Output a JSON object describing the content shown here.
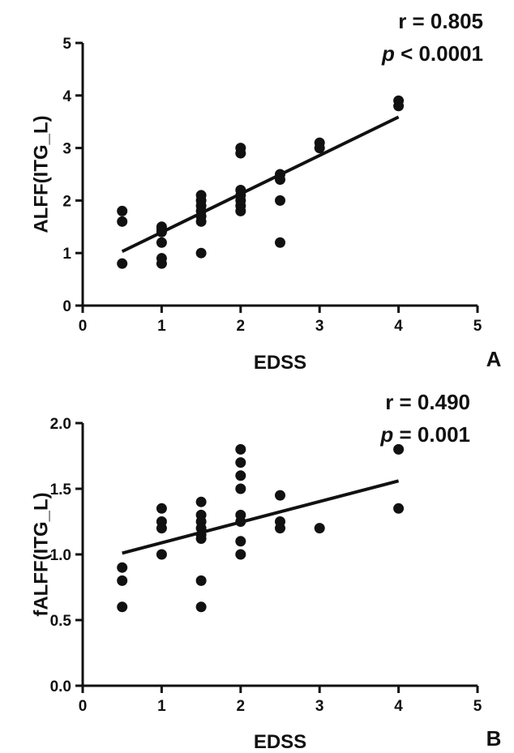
{
  "chart_data": [
    {
      "panel": "A",
      "type": "scatter",
      "title": "",
      "xlabel": "EDSS",
      "ylabel": "ALFF(ITG_L)",
      "xlim": [
        0,
        5
      ],
      "ylim": [
        0,
        5
      ],
      "x_ticks": [
        "0",
        "1",
        "2",
        "3",
        "4",
        "5"
      ],
      "y_ticks": [
        "0",
        "1",
        "2",
        "3",
        "4",
        "5"
      ],
      "stats": {
        "r_label": "r = 0.805",
        "p_symbol": "p",
        "p_rest": " < 0.0001"
      },
      "grid": false,
      "points": [
        [
          0.5,
          1.8
        ],
        [
          0.5,
          1.6
        ],
        [
          0.5,
          0.8
        ],
        [
          1,
          1.5
        ],
        [
          1,
          1.45
        ],
        [
          1,
          1.4
        ],
        [
          1,
          1.2
        ],
        [
          1,
          0.9
        ],
        [
          1,
          0.8
        ],
        [
          1.5,
          2.1
        ],
        [
          1.5,
          2.0
        ],
        [
          1.5,
          1.9
        ],
        [
          1.5,
          1.8
        ],
        [
          1.5,
          1.7
        ],
        [
          1.5,
          1.6
        ],
        [
          1.5,
          1.0
        ],
        [
          2,
          3.0
        ],
        [
          2,
          2.9
        ],
        [
          2,
          2.2
        ],
        [
          2,
          2.1
        ],
        [
          2,
          2.0
        ],
        [
          2,
          1.9
        ],
        [
          2,
          1.8
        ],
        [
          2.5,
          2.5
        ],
        [
          2.5,
          2.4
        ],
        [
          2.5,
          2.0
        ],
        [
          2.5,
          1.2
        ],
        [
          3,
          3.1
        ],
        [
          3,
          3.0
        ],
        [
          4,
          3.9
        ],
        [
          4,
          3.8
        ]
      ],
      "fit": {
        "x": [
          0.5,
          4
        ],
        "y": [
          1.03,
          3.59
        ]
      }
    },
    {
      "panel": "B",
      "type": "scatter",
      "title": "",
      "xlabel": "EDSS",
      "ylabel": "fALFF(ITG_L)",
      "xlim": [
        0,
        5
      ],
      "ylim": [
        0,
        2.0
      ],
      "x_ticks": [
        "0",
        "1",
        "2",
        "3",
        "4",
        "5"
      ],
      "y_ticks": [
        "0.0",
        "0.5",
        "1.0",
        "1.5",
        "2.0"
      ],
      "stats": {
        "r_label": "r = 0.490",
        "p_symbol": "p",
        "p_rest": " = 0.001"
      },
      "grid": false,
      "points": [
        [
          0.5,
          0.9
        ],
        [
          0.5,
          0.8
        ],
        [
          0.5,
          0.6
        ],
        [
          1,
          1.35
        ],
        [
          1,
          1.25
        ],
        [
          1,
          1.2
        ],
        [
          1,
          1.0
        ],
        [
          1.5,
          1.4
        ],
        [
          1.5,
          1.3
        ],
        [
          1.5,
          1.25
        ],
        [
          1.5,
          1.2
        ],
        [
          1.5,
          1.15
        ],
        [
          1.5,
          1.12
        ],
        [
          1.5,
          0.8
        ],
        [
          1.5,
          0.6
        ],
        [
          2,
          1.8
        ],
        [
          2,
          1.7
        ],
        [
          2,
          1.6
        ],
        [
          2,
          1.5
        ],
        [
          2,
          1.3
        ],
        [
          2,
          1.25
        ],
        [
          2,
          1.1
        ],
        [
          2,
          1.0
        ],
        [
          2.5,
          1.45
        ],
        [
          2.5,
          1.25
        ],
        [
          2.5,
          1.2
        ],
        [
          3,
          1.2
        ],
        [
          4,
          1.8
        ],
        [
          4,
          1.35
        ]
      ],
      "fit": {
        "x": [
          0.5,
          4
        ],
        "y": [
          1.01,
          1.56
        ]
      }
    }
  ]
}
